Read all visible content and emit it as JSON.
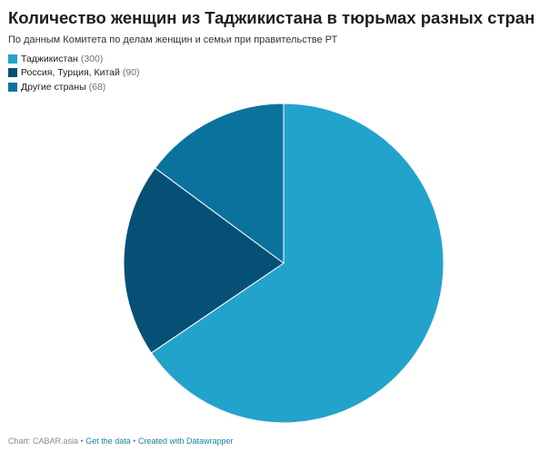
{
  "title": "Количество женщин из Таджикистана в тюрьмах разных стран",
  "subtitle": "По данным Комитета по делам женщин и семьи при правительстве РТ",
  "legend": [
    {
      "name": "Таджикистан",
      "count": "(300)",
      "color": "#22a3cb"
    },
    {
      "name": "Россия, Турция, Китай",
      "count": "(90)",
      "color": "#055074"
    },
    {
      "name": "Другие страны",
      "count": "(68)",
      "color": "#0b729d"
    }
  ],
  "chart_data": {
    "type": "pie",
    "title": "Количество женщин из Таджикистана в тюрьмах разных стран",
    "subtitle": "По данным Комитета по делам женщин и семьи при правительстве РТ",
    "categories": [
      "Таджикистан",
      "Россия, Турция, Китай",
      "Другие страны"
    ],
    "values": [
      300,
      90,
      68
    ],
    "colors": [
      "#22a3cb",
      "#055074",
      "#0b729d"
    ],
    "legend_position": "top-left"
  },
  "footer": {
    "source": "Chart: CABAR.asia",
    "separator": "•",
    "get_data": "Get the data",
    "created_with": "Created with Datawrapper"
  }
}
